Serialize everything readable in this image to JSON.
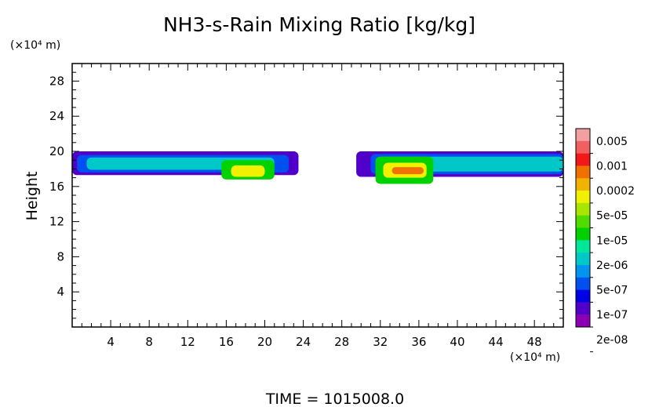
{
  "chart_data": {
    "type": "heatmap",
    "title": "NH3-s-Rain Mixing Ratio [kg/kg]",
    "ylabel": "Height",
    "xlabel": "",
    "x_unit": "(×10⁴ m)",
    "y_unit": "(×10⁴ m)",
    "xlim": [
      0,
      51
    ],
    "ylim": [
      0,
      30
    ],
    "x_ticks": [
      4,
      8,
      12,
      16,
      20,
      24,
      28,
      32,
      36,
      40,
      44,
      48
    ],
    "y_ticks": [
      4,
      8,
      12,
      16,
      20,
      24,
      28
    ],
    "grid": false,
    "colorbar": {
      "labels": [
        "0.005",
        "0.001",
        "0.0002",
        "5e-05",
        "1e-05",
        "2e-06",
        "5e-07",
        "1e-07",
        "2e-08"
      ],
      "colors": [
        "#f0a0a0",
        "#f06060",
        "#f01818",
        "#f07000",
        "#f0b400",
        "#f0f000",
        "#a8e600",
        "#50dc00",
        "#00d200",
        "#00e69a",
        "#00c8c8",
        "#0096f0",
        "#0050f0",
        "#0000e6",
        "#5000c8",
        "#8c00b4"
      ]
    },
    "time_label": "TIME  =  1015008.0",
    "regions": [
      {
        "x0": 0,
        "x1": 23.5,
        "y0": 17.3,
        "y1": 20.0,
        "level": 1
      },
      {
        "x0": 0.5,
        "x1": 22.5,
        "y0": 17.6,
        "y1": 19.6,
        "level": 3
      },
      {
        "x0": 1.5,
        "x1": 21.0,
        "y0": 17.9,
        "y1": 19.3,
        "level": 5
      },
      {
        "x0": 15.5,
        "x1": 21.0,
        "y0": 16.8,
        "y1": 19.0,
        "level": 7
      },
      {
        "x0": 16.5,
        "x1": 20.0,
        "y0": 17.1,
        "y1": 18.4,
        "level": 10
      },
      {
        "x0": 29.5,
        "x1": 51,
        "y0": 17.1,
        "y1": 20.0,
        "level": 1
      },
      {
        "x0": 31.0,
        "x1": 51,
        "y0": 17.4,
        "y1": 19.7,
        "level": 3
      },
      {
        "x0": 31.5,
        "x1": 51,
        "y0": 17.7,
        "y1": 19.4,
        "level": 5
      },
      {
        "x0": 31.5,
        "x1": 37.5,
        "y0": 16.3,
        "y1": 19.4,
        "level": 7
      },
      {
        "x0": 32.3,
        "x1": 36.8,
        "y0": 17.0,
        "y1": 18.7,
        "level": 10
      },
      {
        "x0": 33.2,
        "x1": 36.5,
        "y0": 17.4,
        "y1": 18.2,
        "level": 12
      }
    ]
  }
}
